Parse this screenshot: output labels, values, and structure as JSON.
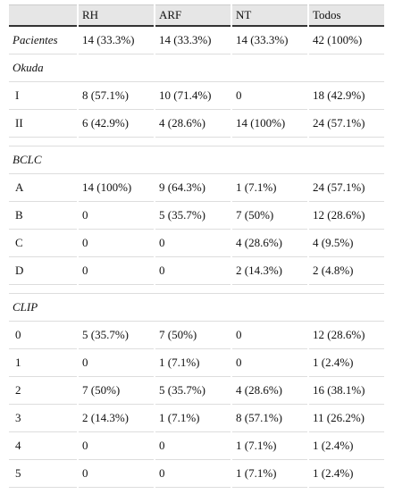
{
  "table": {
    "columns": [
      "RH",
      "ARF",
      "NT",
      "Todos"
    ],
    "total": {
      "label": "Pacientes",
      "cells": [
        "14 (33.3%)",
        "14 (33.3%)",
        "14 (33.3%)",
        "42 (100%)"
      ]
    },
    "groups": [
      {
        "title": "Okuda",
        "rows": [
          {
            "label": "I",
            "cells": [
              "8 (57.1%)",
              "10 (71.4%)",
              "0",
              "18 (42.9%)"
            ]
          },
          {
            "label": "II",
            "cells": [
              "6 (42.9%)",
              "4 (28.6%)",
              "14 (100%)",
              "24 (57.1%)"
            ]
          }
        ]
      },
      {
        "title": "BCLC",
        "rows": [
          {
            "label": "A",
            "cells": [
              "14 (100%)",
              "9 (64.3%)",
              "1 (7.1%)",
              "24 (57.1%)"
            ]
          },
          {
            "label": "B",
            "cells": [
              "0",
              "5 (35.7%)",
              "7 (50%)",
              "12 (28.6%)"
            ]
          },
          {
            "label": "C",
            "cells": [
              "0",
              "0",
              "4 (28.6%)",
              "4 (9.5%)"
            ]
          },
          {
            "label": "D",
            "cells": [
              "0",
              "0",
              "2 (14.3%)",
              "2 (4.8%)"
            ]
          }
        ]
      },
      {
        "title": "CLIP",
        "rows": [
          {
            "label": "0",
            "cells": [
              "5 (35.7%)",
              "7 (50%)",
              "0",
              "12 (28.6%)"
            ]
          },
          {
            "label": "1",
            "cells": [
              "0",
              "1 (7.1%)",
              "0",
              "1 (2.4%)"
            ]
          },
          {
            "label": "2",
            "cells": [
              "7 (50%)",
              "5 (35.7%)",
              "4 (28.6%)",
              "16 (38.1%)"
            ]
          },
          {
            "label": "3",
            "cells": [
              "2 (14.3%)",
              "1 (7.1%)",
              "8 (57.1%)",
              "11 (26.2%)"
            ]
          },
          {
            "label": "4",
            "cells": [
              "0",
              "0",
              "1 (7.1%)",
              "1 (2.4%)"
            ]
          },
          {
            "label": "5",
            "cells": [
              "0",
              "0",
              "1 (7.1%)",
              "1 (2.4%)"
            ]
          }
        ]
      }
    ]
  }
}
